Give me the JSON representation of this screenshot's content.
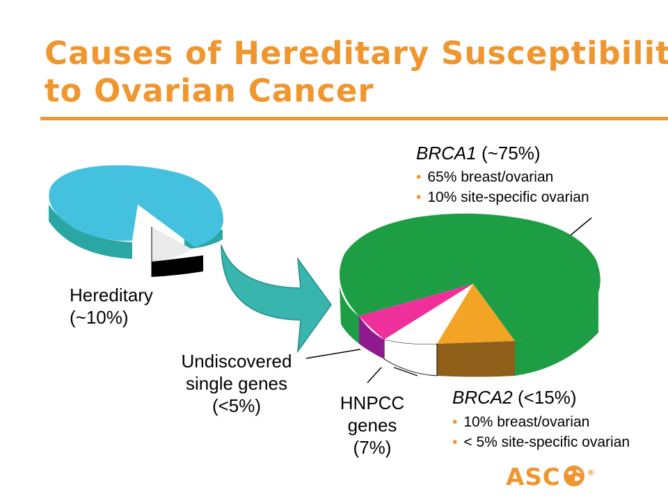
{
  "title": {
    "line1": "Causes of Hereditary Susceptibility",
    "line2": "to Ovarian Cancer"
  },
  "small_pie": {
    "label_line1": "Hereditary",
    "label_line2": "(~10%)"
  },
  "large_pie": {
    "brca1": {
      "gene": "BRCA1",
      "pct": "(~75%)",
      "bullets": [
        "65% breast/ovarian",
        "10% site-specific ovarian"
      ]
    },
    "brca2": {
      "gene": "BRCA2",
      "pct": "(<15%)",
      "bullets": [
        "10% breast/ovarian",
        "< 5% site-specific ovarian"
      ]
    },
    "undiscovered": {
      "line1": "Undiscovered",
      "line2": "single genes",
      "line3": "(<5%)"
    },
    "hnpcc": {
      "line1": "HNPCC",
      "line2": "genes",
      "line3": "(7%)"
    }
  },
  "colors": {
    "accent": "#F0962E",
    "blue": "#45C1E0",
    "teal": "#2AA6A4",
    "green": "#1D9E44",
    "brca2": "#F4A425",
    "pink": "#F0309A",
    "purple": "#8E1A8E"
  },
  "logo": {
    "text": "ASC",
    "mark": "®"
  }
}
